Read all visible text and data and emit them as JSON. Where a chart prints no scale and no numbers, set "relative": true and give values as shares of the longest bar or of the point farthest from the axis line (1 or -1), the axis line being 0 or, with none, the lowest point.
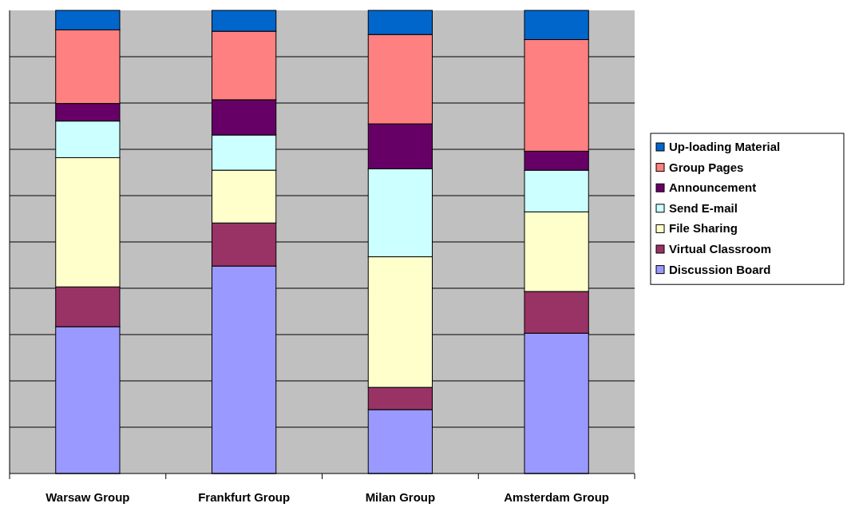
{
  "chart_data": {
    "type": "bar",
    "stacked": true,
    "relative": true,
    "grid": "y",
    "legend": "right",
    "categories": [
      "Warsaw Group",
      "Frankfurt Group",
      "Milan Group",
      "Amsterdam Group"
    ],
    "series": [
      {
        "name": "Discussion Board",
        "color": "#9999ff",
        "values": [
          0.317,
          0.448,
          0.138,
          0.303
        ]
      },
      {
        "name": "Virtual Classroom",
        "color": "#993366",
        "values": [
          0.086,
          0.093,
          0.048,
          0.09
        ]
      },
      {
        "name": "File Sharing",
        "color": "#ffffcc",
        "values": [
          0.279,
          0.114,
          0.282,
          0.172
        ]
      },
      {
        "name": "Send E-mail",
        "color": "#ccffff",
        "values": [
          0.079,
          0.076,
          0.19,
          0.09
        ]
      },
      {
        "name": "Announcement",
        "color": "#660066",
        "values": [
          0.038,
          0.076,
          0.097,
          0.041
        ]
      },
      {
        "name": "Group Pages",
        "color": "#ff8080",
        "values": [
          0.159,
          0.148,
          0.193,
          0.241
        ]
      },
      {
        "name": "Up-loading Material",
        "color": "#0066cc",
        "values": [
          0.042,
          0.045,
          0.052,
          0.063
        ]
      }
    ]
  }
}
